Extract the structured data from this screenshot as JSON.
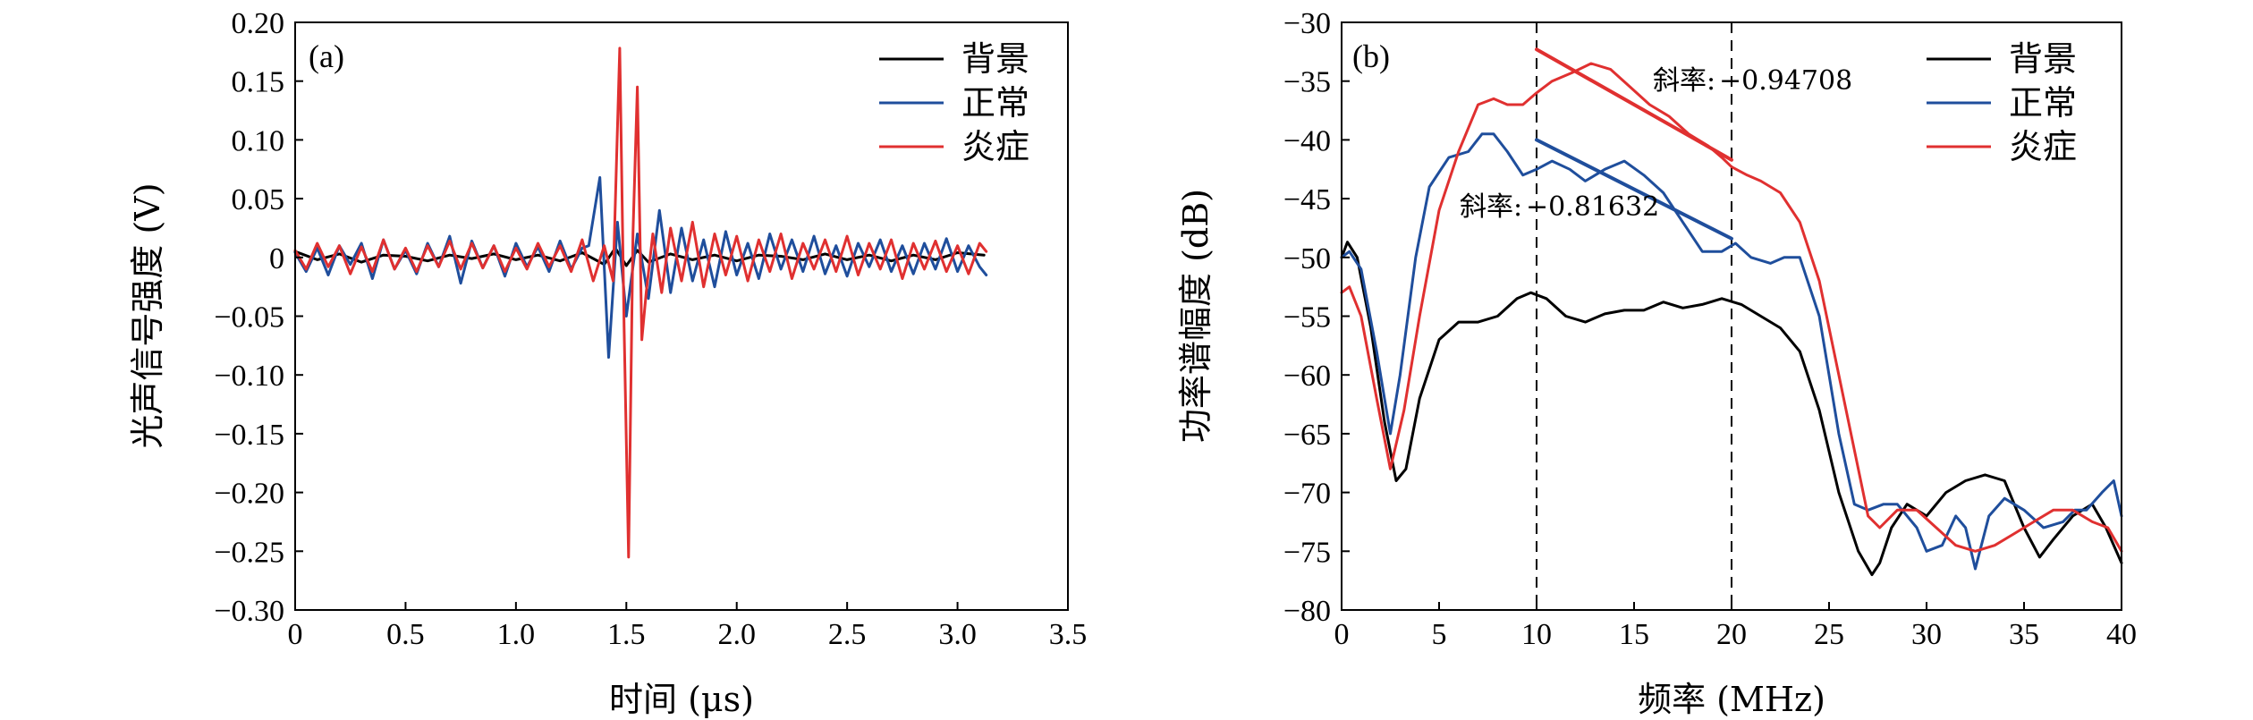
{
  "chart_data": [
    {
      "type": "line",
      "panel_label": "(a)",
      "xlabel": "时间 (μs)",
      "ylabel": "光声信号强度 (V)",
      "xlim": [
        0,
        3.5
      ],
      "ylim": [
        -0.3,
        0.2
      ],
      "xticks": [
        0,
        0.5,
        1.0,
        1.5,
        2.0,
        2.5,
        3.0,
        3.5
      ],
      "xtick_labels": [
        "0",
        "0.5",
        "1.0",
        "1.5",
        "2.0",
        "2.5",
        "3.0",
        "3.5"
      ],
      "yticks": [
        0.2,
        0.15,
        0.1,
        0.05,
        0,
        -0.05,
        -0.1,
        -0.15,
        -0.2,
        -0.25,
        -0.3
      ],
      "ytick_labels": [
        "0.20",
        "0.15",
        "0.10",
        "0.05",
        "0",
        "−0.05",
        "−0.10",
        "−0.15",
        "−0.20",
        "−0.25",
        "−0.30"
      ],
      "legend_position": "top-right",
      "series": [
        {
          "name": "背景",
          "color": "#000000",
          "x": [
            0,
            0.1,
            0.2,
            0.3,
            0.4,
            0.5,
            0.6,
            0.7,
            0.8,
            0.9,
            1.0,
            1.1,
            1.2,
            1.3,
            1.4,
            1.45,
            1.5,
            1.55,
            1.6,
            1.7,
            1.8,
            1.9,
            2.0,
            2.1,
            2.2,
            2.3,
            2.4,
            2.5,
            2.6,
            2.7,
            2.8,
            2.9,
            3.0,
            3.12
          ],
          "y": [
            0.005,
            -0.002,
            0.003,
            -0.004,
            0.002,
            0.001,
            -0.003,
            0.002,
            -0.001,
            0.003,
            -0.002,
            0.002,
            -0.003,
            0.004,
            -0.006,
            0.008,
            -0.007,
            0.006,
            -0.004,
            0.003,
            -0.002,
            0.002,
            -0.003,
            0.002,
            0.001,
            -0.002,
            0.003,
            -0.002,
            0.002,
            -0.003,
            0.002,
            -0.002,
            0.004,
            0.002
          ]
        },
        {
          "name": "正常",
          "color": "#1f4e9c",
          "x": [
            0,
            0.05,
            0.1,
            0.15,
            0.2,
            0.25,
            0.3,
            0.35,
            0.4,
            0.45,
            0.5,
            0.55,
            0.6,
            0.65,
            0.7,
            0.75,
            0.8,
            0.85,
            0.9,
            0.95,
            1.0,
            1.05,
            1.1,
            1.15,
            1.2,
            1.25,
            1.3,
            1.33,
            1.38,
            1.42,
            1.46,
            1.5,
            1.55,
            1.6,
            1.65,
            1.7,
            1.75,
            1.8,
            1.85,
            1.9,
            1.95,
            2.0,
            2.05,
            2.1,
            2.15,
            2.2,
            2.25,
            2.3,
            2.35,
            2.4,
            2.45,
            2.5,
            2.55,
            2.6,
            2.65,
            2.7,
            2.75,
            2.8,
            2.85,
            2.9,
            2.95,
            3.0,
            3.05,
            3.1,
            3.13
          ],
          "y": [
            0.004,
            -0.012,
            0.008,
            -0.015,
            0.01,
            -0.006,
            0.012,
            -0.018,
            0.015,
            -0.01,
            0.006,
            -0.014,
            0.012,
            -0.008,
            0.018,
            -0.022,
            0.014,
            -0.009,
            0.01,
            -0.016,
            0.012,
            -0.008,
            0.009,
            -0.012,
            0.014,
            -0.01,
            0.008,
            0.01,
            0.068,
            -0.085,
            0.03,
            -0.05,
            0.02,
            -0.035,
            0.04,
            -0.03,
            0.025,
            -0.02,
            0.015,
            -0.025,
            0.022,
            -0.015,
            0.012,
            -0.018,
            0.02,
            -0.01,
            0.015,
            -0.012,
            0.018,
            -0.014,
            0.01,
            -0.016,
            0.012,
            -0.008,
            0.015,
            -0.012,
            0.01,
            -0.014,
            0.012,
            -0.01,
            0.016,
            -0.012,
            0.01,
            -0.008,
            -0.015
          ]
        },
        {
          "name": "炎症",
          "color": "#e03030",
          "x": [
            0,
            0.05,
            0.1,
            0.15,
            0.2,
            0.25,
            0.3,
            0.35,
            0.4,
            0.45,
            0.5,
            0.55,
            0.6,
            0.65,
            0.7,
            0.75,
            0.8,
            0.85,
            0.9,
            0.95,
            1.0,
            1.05,
            1.1,
            1.15,
            1.2,
            1.25,
            1.3,
            1.35,
            1.4,
            1.44,
            1.47,
            1.49,
            1.51,
            1.53,
            1.55,
            1.57,
            1.59,
            1.62,
            1.66,
            1.7,
            1.75,
            1.8,
            1.85,
            1.9,
            1.95,
            2.0,
            2.05,
            2.1,
            2.15,
            2.2,
            2.25,
            2.3,
            2.35,
            2.4,
            2.45,
            2.5,
            2.55,
            2.6,
            2.65,
            2.7,
            2.75,
            2.8,
            2.85,
            2.9,
            2.95,
            3.0,
            3.05,
            3.1,
            3.13
          ],
          "y": [
            0.006,
            -0.01,
            0.012,
            -0.008,
            0.01,
            -0.014,
            0.009,
            -0.012,
            0.015,
            -0.01,
            0.008,
            -0.012,
            0.01,
            -0.008,
            0.014,
            -0.01,
            0.012,
            -0.009,
            0.01,
            -0.012,
            0.008,
            -0.01,
            0.012,
            -0.008,
            0.01,
            -0.012,
            0.015,
            -0.02,
            0.01,
            -0.02,
            0.178,
            -0.06,
            -0.255,
            0.02,
            0.145,
            -0.07,
            -0.03,
            0.02,
            -0.03,
            0.025,
            -0.02,
            0.03,
            -0.025,
            0.02,
            -0.015,
            0.018,
            -0.02,
            0.015,
            -0.012,
            0.02,
            -0.018,
            0.012,
            -0.01,
            0.015,
            -0.012,
            0.018,
            -0.015,
            0.012,
            -0.01,
            0.015,
            -0.018,
            0.012,
            -0.01,
            0.014,
            -0.012,
            0.01,
            -0.014,
            0.012,
            0.005
          ]
        }
      ]
    },
    {
      "type": "line",
      "panel_label": "(b)",
      "xlabel": "频率 (MHz)",
      "ylabel": "功率谱幅度 (dB)",
      "xlim": [
        0,
        40
      ],
      "ylim": [
        -80,
        -30
      ],
      "xticks": [
        0,
        5,
        10,
        15,
        20,
        25,
        30,
        35,
        40
      ],
      "xtick_labels": [
        "0",
        "5",
        "10",
        "15",
        "20",
        "25",
        "30",
        "35",
        "40"
      ],
      "yticks": [
        -30,
        -35,
        -40,
        -45,
        -50,
        -55,
        -60,
        -65,
        -70,
        -75,
        -80
      ],
      "ytick_labels": [
        "−30",
        "−35",
        "−40",
        "−45",
        "−50",
        "−55",
        "−60",
        "−65",
        "−70",
        "−75",
        "−80"
      ],
      "vlines": [
        10,
        20
      ],
      "legend_position": "top-right",
      "series": [
        {
          "name": "背景",
          "color": "#000000",
          "x": [
            0,
            0.3,
            0.8,
            1.5,
            2.2,
            2.8,
            3.3,
            4,
            5,
            6,
            7,
            8,
            9,
            9.7,
            10.5,
            11.5,
            12.5,
            13.5,
            14.5,
            15.5,
            16.5,
            17.5,
            18.5,
            19.5,
            20.5,
            21.5,
            22.5,
            23.5,
            24.5,
            25.5,
            26.5,
            27.2,
            27.6,
            28.2,
            29,
            30,
            31,
            32,
            33,
            34,
            35,
            35.8,
            36.5,
            37.5,
            38.5,
            39.2,
            40
          ],
          "y": [
            -50,
            -48.7,
            -50,
            -56,
            -64,
            -69,
            -68,
            -62,
            -57,
            -55.5,
            -55.5,
            -55,
            -53.5,
            -53,
            -53.5,
            -55,
            -55.5,
            -54.8,
            -54.5,
            -54.5,
            -53.8,
            -54.3,
            -54,
            -53.5,
            -54,
            -55,
            -56,
            -58,
            -63,
            -70,
            -75,
            -77,
            -76,
            -73,
            -71,
            -72,
            -70,
            -69,
            -68.5,
            -69,
            -73,
            -75.5,
            -74,
            -72,
            -71,
            -73,
            -76
          ]
        },
        {
          "name": "正常",
          "color": "#1f4e9c",
          "x": [
            0,
            0.4,
            1,
            1.8,
            2.5,
            3,
            3.8,
            4.5,
            5.5,
            6.5,
            7.2,
            7.8,
            8.5,
            9.3,
            10,
            10.8,
            11.7,
            12.5,
            13.5,
            14.5,
            15.5,
            16.5,
            17.5,
            18.5,
            19.5,
            20.2,
            21,
            22,
            22.7,
            23.5,
            24.5,
            25.5,
            26.3,
            27,
            27.8,
            28.5,
            29.5,
            30,
            30.8,
            31.5,
            32,
            32.5,
            33.2,
            34,
            35,
            36,
            37,
            37.6,
            38.2,
            39,
            39.6,
            40
          ],
          "y": [
            -50,
            -49.5,
            -51,
            -58,
            -65,
            -60,
            -50,
            -44,
            -41.5,
            -41,
            -39.5,
            -39.5,
            -41,
            -43,
            -42.5,
            -41.8,
            -42.5,
            -43.5,
            -42.5,
            -41.8,
            -43,
            -44.5,
            -47,
            -49.5,
            -49.5,
            -48.8,
            -50,
            -50.5,
            -50,
            -50,
            -55,
            -65,
            -71,
            -71.5,
            -71,
            -71,
            -73,
            -75,
            -74.5,
            -72,
            -73,
            -76.5,
            -72,
            -70.5,
            -71.5,
            -73,
            -72.5,
            -71.5,
            -71.5,
            -70,
            -69,
            -72
          ]
        },
        {
          "name": "炎症",
          "color": "#e03030",
          "x": [
            0,
            0.4,
            1,
            1.8,
            2.5,
            3.2,
            4,
            5,
            6,
            7,
            7.8,
            8.5,
            9.3,
            10,
            10.8,
            11.8,
            12.8,
            13.8,
            14.8,
            15.8,
            16.8,
            17.8,
            18.8,
            19.5,
            20,
            20.8,
            21.5,
            22.5,
            23.5,
            24.5,
            25.5,
            26.5,
            27,
            27.6,
            28.5,
            29.5,
            30.5,
            31.5,
            32.5,
            33.5,
            34.5,
            35.5,
            36.5,
            37.5,
            38.5,
            39.3,
            40
          ],
          "y": [
            -53,
            -52.5,
            -55,
            -62,
            -68,
            -63,
            -55,
            -46,
            -41,
            -37,
            -36.5,
            -37,
            -37,
            -36,
            -35,
            -34.3,
            -33.5,
            -34,
            -35.5,
            -37,
            -38,
            -39.5,
            -40.5,
            -41.5,
            -42.3,
            -43,
            -43.5,
            -44.5,
            -47,
            -52,
            -60,
            -68,
            -72,
            -73,
            -71.5,
            -71.5,
            -73,
            -74.5,
            -75,
            -74.5,
            -73.5,
            -72.5,
            -71.5,
            -71.5,
            -72.5,
            -73,
            -75
          ]
        }
      ],
      "fit_lines": [
        {
          "series": "正常",
          "color": "#1f4e9c",
          "x": [
            10,
            20
          ],
          "y": [
            -40.0,
            -48.4
          ]
        },
        {
          "series": "炎症",
          "color": "#e03030",
          "x": [
            10,
            20
          ],
          "y": [
            -32.3,
            -41.7
          ]
        }
      ],
      "annotations": [
        {
          "label": "斜率:",
          "value": "−0.94708"
        },
        {
          "label": "斜率:",
          "value": "−0.81632"
        }
      ]
    }
  ]
}
